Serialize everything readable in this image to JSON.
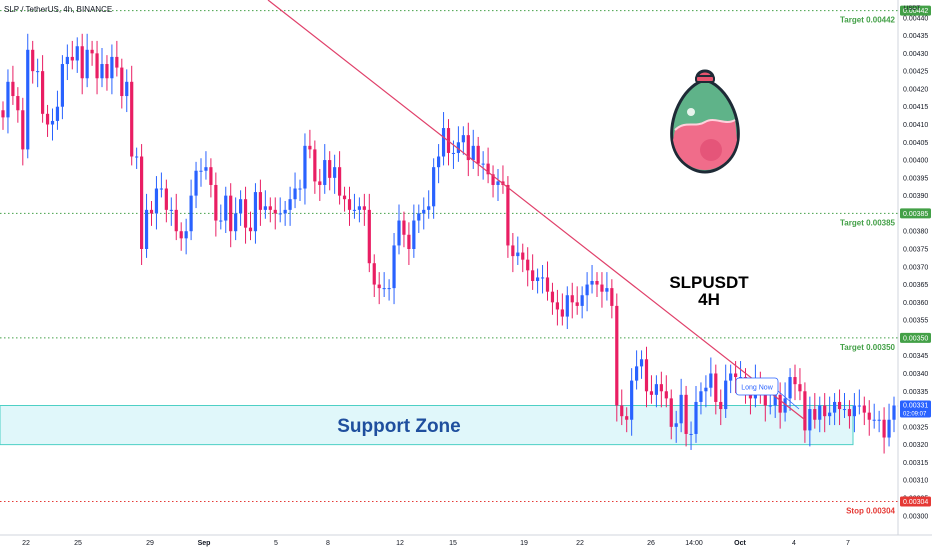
{
  "header": {
    "symbol_line": "SLP / TetherUS, 4h, BINANCE",
    "currency": "USDT"
  },
  "colors": {
    "up": "#2962ff",
    "down": "#e91e63",
    "trendline": "#e0406a",
    "target_line": "#43a047",
    "stop_line": "#e53935",
    "support_fill": "#e0f7fa",
    "support_border": "#4dd0c5",
    "title": "#1f3a68",
    "support_text": "#1f4f9e"
  },
  "chart_data": {
    "type": "candlestick",
    "symbol": "SLPUSDT",
    "timeframe": "4H",
    "exchange": "BINANCE",
    "ylim": [
      0.00296,
      0.00445
    ],
    "yticks": [
      "0.00300",
      "0.00305",
      "0.00310",
      "0.00315",
      "0.00320",
      "0.00325",
      "0.00330",
      "0.00335",
      "0.00340",
      "0.00345",
      "0.00350",
      "0.00355",
      "0.00360",
      "0.00365",
      "0.00370",
      "0.00375",
      "0.00380",
      "0.00385",
      "0.00390",
      "0.00395",
      "0.00400",
      "0.00405",
      "0.00410",
      "0.00415",
      "0.00420",
      "0.00425",
      "0.00430",
      "0.00435",
      "0.00440",
      "0.00445"
    ],
    "xticks": [
      "22",
      "25",
      "29",
      "Sep",
      "5",
      "8",
      "12",
      "15",
      "19",
      "22",
      "26",
      "14:00",
      "Oct",
      "4",
      "7"
    ],
    "levels": [
      {
        "name": "target-1",
        "value": 0.00442,
        "label": "Target 0.00442",
        "tag": "0.00442",
        "kind": "target"
      },
      {
        "name": "target-2",
        "value": 0.00385,
        "label": "Target 0.00385",
        "tag": "0.00385",
        "kind": "target"
      },
      {
        "name": "target-3",
        "value": 0.0035,
        "label": "Target 0.00350",
        "tag": "0.00350",
        "kind": "target"
      },
      {
        "name": "stop",
        "value": 0.00304,
        "label": "Stop 0.00304",
        "tag": "0.00304",
        "kind": "stop"
      }
    ],
    "current_price": {
      "value": "0.00331",
      "countdown": "02:09:07"
    },
    "support_zone": {
      "low": 0.0032,
      "high": 0.00331,
      "label": "Support Zone"
    },
    "title_block": {
      "line1": "SLPUSDT",
      "line2": "4H"
    },
    "callout": {
      "label": "Long Now"
    },
    "trendline": {
      "from": {
        "bar": 0,
        "price": 0.00475
      },
      "to": {
        "bar": 162,
        "price": 0.00327
      }
    },
    "series": [
      {
        "values": [
          0.00412,
          0.00422,
          0.00418,
          0.00414,
          0.00403,
          0.00431,
          0.00425,
          0.00425,
          0.00413,
          0.0041,
          0.00411,
          0.00415,
          0.00427,
          0.00429,
          0.00428,
          0.00432,
          0.00423,
          0.00431,
          0.0043,
          0.00423,
          0.00427,
          0.00423,
          0.00429,
          0.00426,
          0.00418,
          0.00422,
          0.00401,
          0.00401,
          0.00375,
          0.00386,
          0.00385,
          0.00392,
          0.00392,
          0.00386,
          0.00386,
          0.0038,
          0.00378,
          0.0038,
          0.0039,
          0.00397,
          0.00397,
          0.00398,
          0.00393,
          0.00383,
          0.00383,
          0.0039,
          0.0038,
          0.00385,
          0.00389,
          0.00381,
          0.0038,
          0.00391,
          0.00386,
          0.00387,
          0.00386,
          0.00385,
          0.00385,
          0.00386,
          0.00389,
          0.00392,
          0.00392,
          0.00404,
          0.00403,
          0.00394,
          0.00393,
          0.004,
          0.00395,
          0.00398,
          0.0039,
          0.00389,
          0.00386,
          0.00386,
          0.00387,
          0.00386,
          0.00371,
          0.00365,
          0.00364,
          0.00364,
          0.00364,
          0.00376,
          0.00383,
          0.00379,
          0.00375,
          0.00383,
          0.00385,
          0.00386,
          0.00387,
          0.00398,
          0.00401,
          0.00409,
          0.00402,
          0.00402,
          0.00405,
          0.00407,
          0.004,
          0.00404,
          0.00399,
          0.00399,
          0.00396,
          0.00393,
          0.00394,
          0.00393,
          0.00376,
          0.00373,
          0.00374,
          0.00372,
          0.00369,
          0.00366,
          0.00367,
          0.00367,
          0.00363,
          0.0036,
          0.00358,
          0.00356,
          0.00362,
          0.0036,
          0.00359,
          0.00362,
          0.00365,
          0.00366,
          0.00365,
          0.00363,
          0.00364,
          0.00359,
          0.00331,
          0.00328,
          0.00327,
          0.00338,
          0.00342,
          0.00344,
          0.00335,
          0.00334,
          0.00337,
          0.00335,
          0.00333,
          0.00325,
          0.00326,
          0.00334,
          0.00323,
          0.00323,
          0.00332,
          0.00335,
          0.00336,
          0.0034,
          0.00332,
          0.0033,
          0.00338,
          0.0034,
          0.00339,
          0.00339,
          0.00335,
          0.00333,
          0.00338,
          0.00335,
          0.00331,
          0.00331,
          0.00334,
          0.00329,
          0.00333,
          0.00339,
          0.00337,
          0.00335,
          0.00324,
          0.0033,
          0.00327,
          0.00331,
          0.00328,
          0.00329,
          0.00332,
          0.0033,
          0.0033,
          0.00328,
          0.00331,
          0.00331,
          0.00329,
          0.00327,
          0.00327,
          0.00327,
          0.00322,
          0.00327,
          0.00331,
          0.00331,
          0.00331
        ]
      }
    ]
  }
}
